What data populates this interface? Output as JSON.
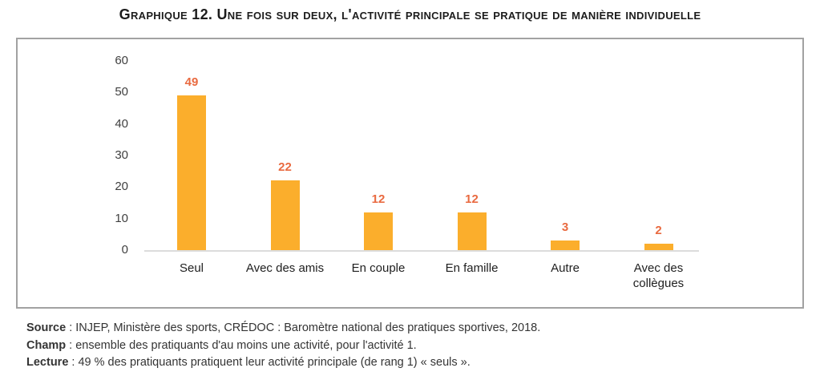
{
  "header": {
    "title": "Graphique 12. Une fois sur deux, l'activité principale se pratique de manière individuelle"
  },
  "chart_data": {
    "type": "bar",
    "title": "Graphique 12. Une fois sur deux, l'activité principale se pratique de manière individuelle",
    "categories": [
      "Seul",
      "Avec des amis",
      "En couple",
      "En famille",
      "Autre",
      "Avec des collègues"
    ],
    "values": [
      49,
      22,
      12,
      12,
      3,
      2
    ],
    "xlabel": "",
    "ylabel": "",
    "ylim": [
      0,
      60
    ],
    "ytick_step": 10,
    "grid": false,
    "legend_position": "none",
    "bar_color": "#FBAE2C",
    "value_label_color": "#E96A40",
    "axis_line_color": "#dcdcdc",
    "frame_border_color": "#a2a2a2"
  },
  "notes": [
    {
      "label": "Source",
      "text": " : INJEP, Ministère des sports, CRÉDOC : Baromètre national des pratiques sportives, 2018."
    },
    {
      "label": "Champ",
      "text": " : ensemble des pratiquants d'au moins une activité, pour l'activité 1."
    },
    {
      "label": "Lecture",
      "text": " : 49 % des pratiquants pratiquent leur activité principale (de rang 1) « seuls »."
    }
  ]
}
